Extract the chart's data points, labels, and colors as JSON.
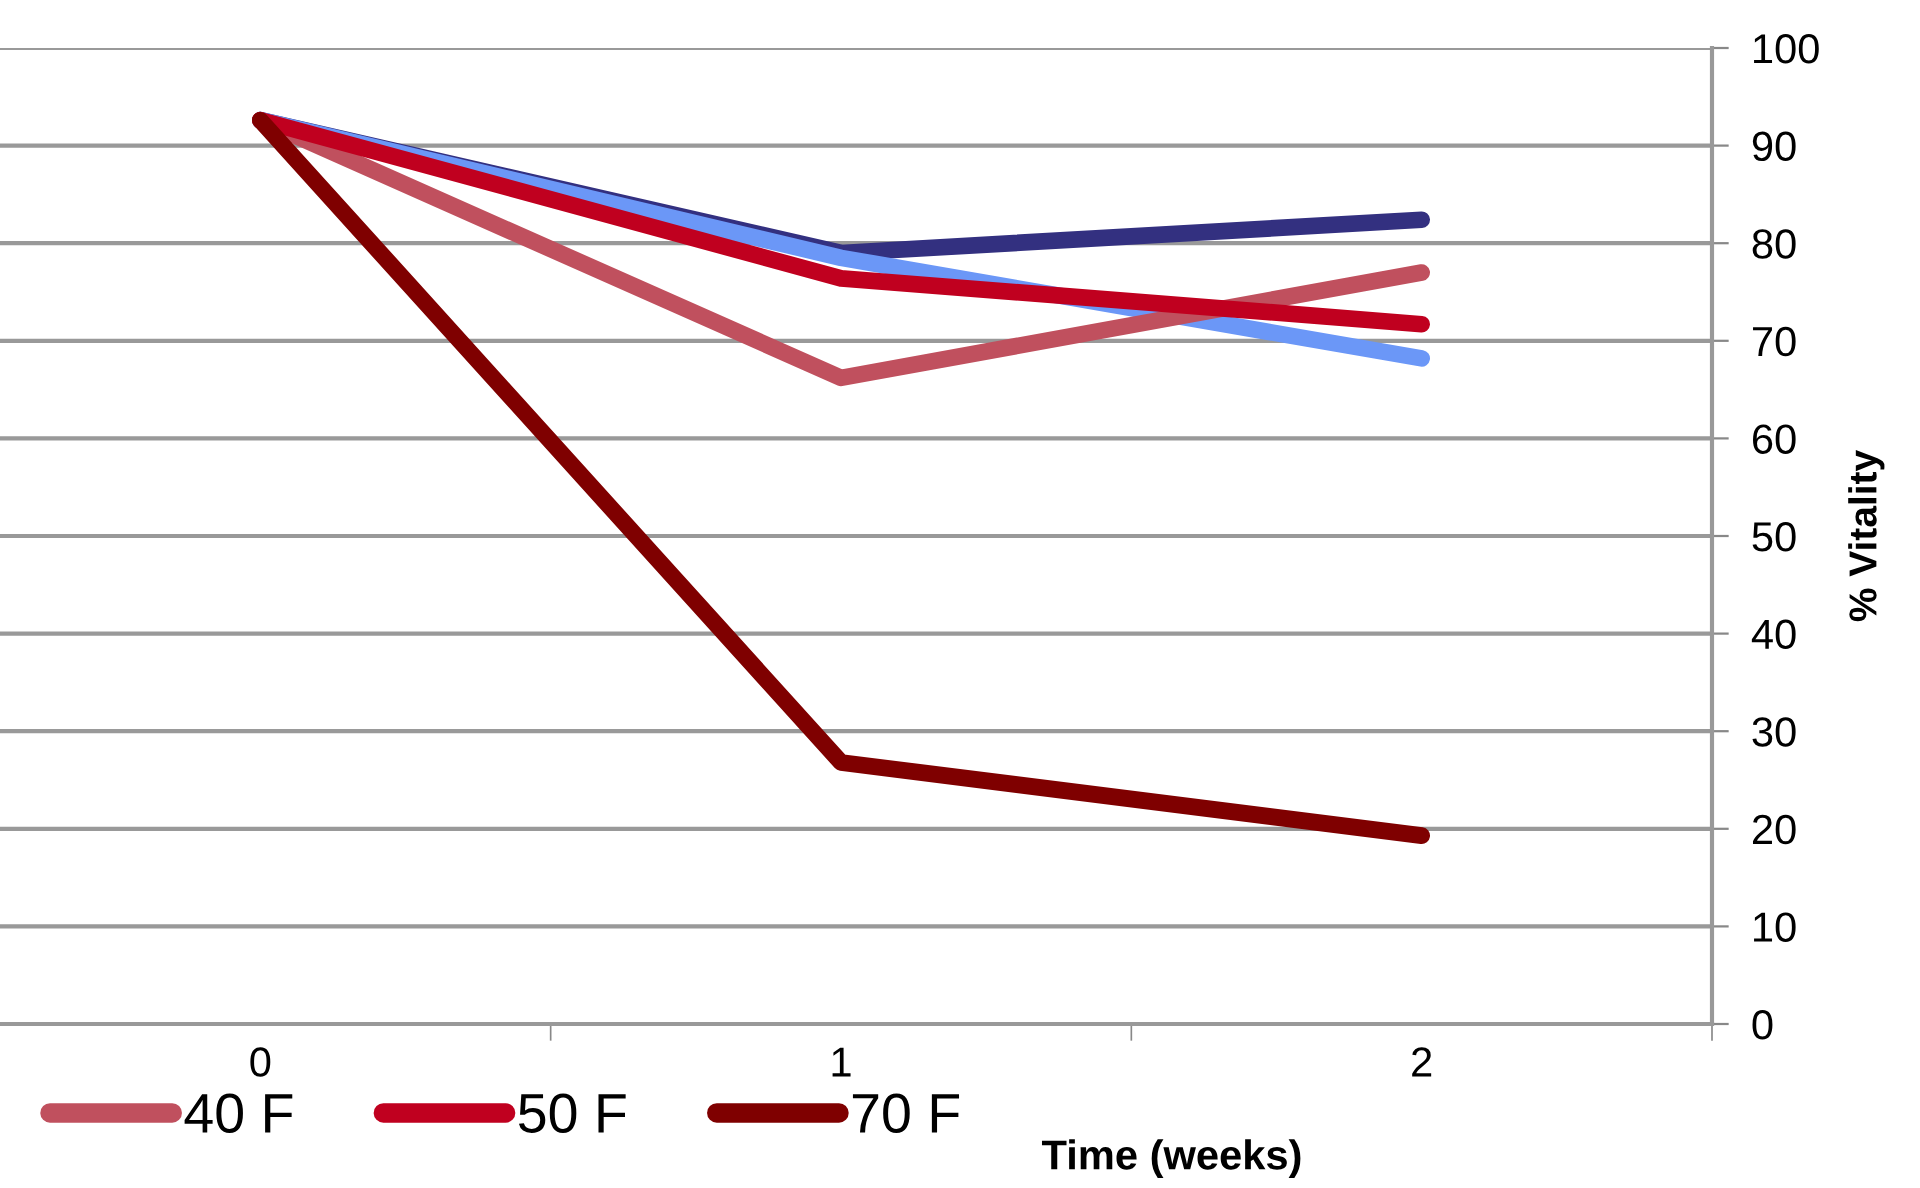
{
  "chart_data": {
    "type": "line",
    "xlabel": "Time (weeks)",
    "ylabel": "% Vitality",
    "categories": [
      "0",
      "1",
      "2"
    ],
    "series": [
      {
        "color": "#333080",
        "values": [
          92.6,
          79,
          82.4
        ]
      },
      {
        "color": "#6b97f7",
        "values": [
          92.6,
          78.5,
          68.2
        ]
      },
      {
        "name": "40 F",
        "color": "#c0505e",
        "values": [
          92.6,
          66.2,
          77
        ]
      },
      {
        "name": "50 F",
        "color": "#c0001f",
        "values": [
          92.6,
          76.4,
          71.7
        ]
      },
      {
        "name": "70 F",
        "color": "#7f0000",
        "values": [
          92.6,
          26.8,
          19.3
        ]
      }
    ],
    "ylim": [
      0,
      100
    ],
    "yticks": [
      0,
      10,
      20,
      30,
      40,
      50,
      60,
      70,
      80,
      90,
      100
    ],
    "grid": "y",
    "legend": "bottom",
    "marker": "none",
    "line_style": "solid"
  }
}
